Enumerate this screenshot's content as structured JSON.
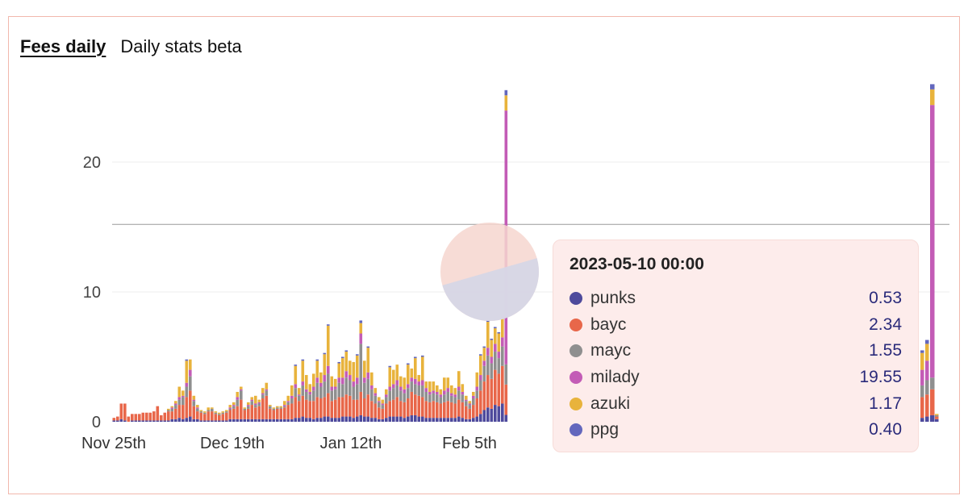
{
  "tabs": [
    {
      "label": "Fees daily",
      "active": true
    },
    {
      "label": "Daily stats beta",
      "active": false
    }
  ],
  "tooltip": {
    "title": "2023-05-10 00:00",
    "rows": [
      {
        "name": "punks",
        "value": "0.53",
        "color": "#4e4a9c"
      },
      {
        "name": "bayc",
        "value": "2.34",
        "color": "#e8674a"
      },
      {
        "name": "mayc",
        "value": "1.55",
        "color": "#8f8f8f"
      },
      {
        "name": "milady",
        "value": "19.55",
        "color": "#c35cb6"
      },
      {
        "name": "azuki",
        "value": "1.17",
        "color": "#e8b33c"
      },
      {
        "name": "ppg",
        "value": "0.40",
        "color": "#6367bd"
      }
    ]
  },
  "chart_data": {
    "type": "bar",
    "stacked": true,
    "y_ticks": [
      0,
      10,
      20
    ],
    "ylim": [
      0,
      26
    ],
    "x_tick_labels": [
      "Nov 25th",
      "Dec 19th",
      "Jan 12th",
      "Feb 5th"
    ],
    "hover_line_value": 15.2,
    "series": [
      {
        "name": "punks",
        "color": "#4e4a9c"
      },
      {
        "name": "bayc",
        "color": "#e8674a"
      },
      {
        "name": "mayc",
        "color": "#8f8f8f"
      },
      {
        "name": "milady",
        "color": "#c35cb6"
      },
      {
        "name": "azuki",
        "color": "#e8b33c"
      },
      {
        "name": "ppg",
        "color": "#6367bd"
      }
    ],
    "bars": [
      [
        0.1,
        0.2,
        0,
        0,
        0,
        0
      ],
      [
        0.1,
        0.3,
        0,
        0,
        0,
        0
      ],
      [
        0.2,
        1.2,
        0,
        0,
        0,
        0
      ],
      [
        0.1,
        1.3,
        0,
        0,
        0,
        0
      ],
      [
        0,
        0.4,
        0,
        0,
        0,
        0
      ],
      [
        0.1,
        0.5,
        0,
        0,
        0,
        0
      ],
      [
        0.1,
        0.5,
        0,
        0,
        0,
        0
      ],
      [
        0.1,
        0.5,
        0,
        0,
        0,
        0
      ],
      [
        0.1,
        0.6,
        0,
        0,
        0,
        0
      ],
      [
        0.1,
        0.6,
        0,
        0,
        0,
        0
      ],
      [
        0.1,
        0.6,
        0,
        0,
        0,
        0
      ],
      [
        0.1,
        0.7,
        0,
        0,
        0,
        0
      ],
      [
        0.1,
        1.1,
        0,
        0,
        0,
        0
      ],
      [
        0.1,
        0.4,
        0,
        0,
        0,
        0
      ],
      [
        0.1,
        0.6,
        0,
        0,
        0,
        0
      ],
      [
        0.1,
        0.7,
        0.1,
        0,
        0.1,
        0
      ],
      [
        0.2,
        0.6,
        0.2,
        0.1,
        0.1,
        0
      ],
      [
        0.2,
        0.8,
        0.3,
        0.1,
        0.2,
        0
      ],
      [
        0.3,
        1.0,
        0.4,
        0.2,
        0.8,
        0
      ],
      [
        0.2,
        1.1,
        0.6,
        0.1,
        0.4,
        0
      ],
      [
        0.3,
        1.6,
        0.8,
        0.3,
        1.7,
        0.1
      ],
      [
        0.4,
        2.0,
        1.1,
        0.5,
        0.8,
        0
      ],
      [
        0.2,
        1.0,
        0.4,
        0.1,
        0.3,
        0
      ],
      [
        0.2,
        0.6,
        0.2,
        0.1,
        0.2,
        0
      ],
      [
        0.1,
        0.6,
        0.1,
        0,
        0.1,
        0
      ],
      [
        0.1,
        0.5,
        0.1,
        0,
        0.1,
        0
      ],
      [
        0.1,
        0.7,
        0.1,
        0,
        0.2,
        0
      ],
      [
        0.1,
        0.7,
        0.2,
        0,
        0.1,
        0
      ],
      [
        0.1,
        0.5,
        0.1,
        0,
        0.1,
        0
      ],
      [
        0.1,
        0.4,
        0.1,
        0,
        0.1,
        0
      ],
      [
        0.1,
        0.5,
        0.1,
        0,
        0.1,
        0
      ],
      [
        0.1,
        0.6,
        0.1,
        0,
        0.1,
        0
      ],
      [
        0.2,
        0.7,
        0.1,
        0.1,
        0.2,
        0
      ],
      [
        0.2,
        0.8,
        0.2,
        0.1,
        0.2,
        0
      ],
      [
        0.2,
        1.0,
        0.5,
        0.2,
        0.4,
        0
      ],
      [
        0.2,
        1.5,
        0.7,
        0.1,
        0.2,
        0
      ],
      [
        0.2,
        0.7,
        0.1,
        0,
        0.1,
        0
      ],
      [
        0.2,
        0.8,
        0.2,
        0.1,
        0.2,
        0
      ],
      [
        0.2,
        1.1,
        0.3,
        0.1,
        0.2,
        0
      ],
      [
        0.2,
        0.9,
        0.2,
        0.1,
        0.6,
        0
      ],
      [
        0.2,
        1.0,
        0.2,
        0.1,
        0.2,
        0
      ],
      [
        0.2,
        1.6,
        0.3,
        0.1,
        0.4,
        0
      ],
      [
        0.2,
        1.8,
        0.4,
        0.1,
        0.5,
        0
      ],
      [
        0.2,
        0.8,
        0.2,
        0,
        0.1,
        0
      ],
      [
        0.2,
        0.7,
        0.1,
        0,
        0.1,
        0
      ],
      [
        0.2,
        0.8,
        0.1,
        0,
        0.1,
        0
      ],
      [
        0.2,
        0.8,
        0.1,
        0,
        0.1,
        0
      ],
      [
        0.2,
        0.9,
        0.1,
        0.1,
        0.3,
        0
      ],
      [
        0.2,
        1.1,
        0.2,
        0.1,
        0.4,
        0
      ],
      [
        0.2,
        1.2,
        0.4,
        0.2,
        0.8,
        0
      ],
      [
        0.3,
        1.6,
        0.7,
        0.3,
        1.4,
        0.1
      ],
      [
        0.3,
        1.3,
        0.4,
        0.1,
        0.5,
        0
      ],
      [
        0.4,
        1.6,
        0.8,
        0.3,
        1.6,
        0.1
      ],
      [
        0.3,
        1.4,
        0.6,
        0.2,
        1.1,
        0
      ],
      [
        0.3,
        1.3,
        0.5,
        0.2,
        0.6,
        0
      ],
      [
        0.2,
        1.4,
        0.8,
        0.3,
        1.0,
        0
      ],
      [
        0.3,
        1.6,
        1.1,
        0.4,
        1.3,
        0.1
      ],
      [
        0.3,
        1.5,
        0.9,
        0.3,
        0.8,
        0
      ],
      [
        0.4,
        1.5,
        1.2,
        0.5,
        1.6,
        0.1
      ],
      [
        0.4,
        1.8,
        1.5,
        0.6,
        3.1,
        0.1
      ],
      [
        0.3,
        1.3,
        0.8,
        0.3,
        0.8,
        0
      ],
      [
        0.3,
        1.4,
        0.8,
        0.2,
        0.6,
        0
      ],
      [
        0.3,
        1.6,
        1.1,
        0.4,
        1.1,
        0.1
      ],
      [
        0.4,
        1.5,
        1.0,
        0.5,
        1.5,
        0.1
      ],
      [
        0.4,
        1.7,
        1.3,
        0.5,
        1.5,
        0.1
      ],
      [
        0.4,
        1.6,
        1.2,
        0.4,
        1.1,
        0
      ],
      [
        0.3,
        1.4,
        1.0,
        0.4,
        1.5,
        0
      ],
      [
        0.4,
        1.3,
        1.2,
        0.5,
        1.7,
        0.1
      ],
      [
        0.5,
        1.8,
        3.7,
        0.8,
        0.8,
        0.2
      ],
      [
        0.4,
        1.4,
        1.2,
        0.4,
        1.3,
        0
      ],
      [
        0.4,
        1.7,
        1.2,
        0.5,
        1.9,
        0.1
      ],
      [
        0.3,
        1.3,
        0.9,
        0.3,
        1.0,
        0
      ],
      [
        0.3,
        1.1,
        0.6,
        0.2,
        0.4,
        0
      ],
      [
        0.2,
        0.9,
        0.4,
        0.1,
        0.3,
        0
      ],
      [
        0.2,
        0.8,
        0.3,
        0.1,
        0.3,
        0
      ],
      [
        0.3,
        1.1,
        0.5,
        0.2,
        0.4,
        0
      ],
      [
        0.4,
        1.2,
        0.8,
        0.3,
        1.5,
        0.1
      ],
      [
        0.4,
        1.3,
        0.9,
        0.3,
        1.1,
        0
      ],
      [
        0.4,
        1.5,
        0.9,
        0.4,
        1.2,
        0
      ],
      [
        0.4,
        1.2,
        0.8,
        0.3,
        0.8,
        0
      ],
      [
        0.3,
        1.2,
        0.7,
        0.3,
        0.9,
        0
      ],
      [
        0.4,
        1.4,
        0.8,
        0.3,
        1.5,
        0.1
      ],
      [
        0.5,
        1.8,
        0.8,
        0.3,
        0.7,
        0
      ],
      [
        0.5,
        1.6,
        0.8,
        0.4,
        1.6,
        0.1
      ],
      [
        0.4,
        1.6,
        0.8,
        0.3,
        0.5,
        0
      ],
      [
        0.4,
        1.5,
        0.9,
        0.4,
        1.8,
        0.1
      ],
      [
        0.3,
        1.3,
        0.7,
        0.3,
        0.5,
        0
      ],
      [
        0.3,
        1.2,
        0.6,
        0.2,
        0.8,
        0
      ],
      [
        0.3,
        1.3,
        0.6,
        0.2,
        0.7,
        0
      ],
      [
        0.3,
        1.2,
        0.6,
        0.2,
        0.5,
        0
      ],
      [
        0.3,
        1.1,
        0.5,
        0.2,
        0.4,
        0
      ],
      [
        0.3,
        1.2,
        0.6,
        0.3,
        1.0,
        0
      ],
      [
        0.3,
        1.3,
        0.7,
        0.3,
        0.8,
        0
      ],
      [
        0.3,
        1.2,
        0.5,
        0.2,
        0.6,
        0
      ],
      [
        0.3,
        1.1,
        0.5,
        0.2,
        0.5,
        0
      ],
      [
        0.4,
        1.3,
        0.7,
        0.3,
        1.2,
        0
      ],
      [
        0.3,
        1.2,
        0.6,
        0.2,
        0.6,
        0
      ],
      [
        0.2,
        1.0,
        0.4,
        0.1,
        0.3,
        0
      ],
      [
        0.2,
        0.8,
        0.3,
        0.1,
        0.2,
        0
      ],
      [
        0.3,
        1.0,
        0.5,
        0.2,
        0.3,
        0
      ],
      [
        0.4,
        1.4,
        0.6,
        0.3,
        1.1,
        0
      ],
      [
        0.6,
        1.8,
        0.8,
        0.4,
        1.5,
        0.1
      ],
      [
        0.9,
        2.2,
        1.2,
        0.4,
        1.0,
        0.1
      ],
      [
        1.1,
        2.5,
        1.5,
        0.6,
        2.0,
        0.1
      ],
      [
        1.0,
        2.3,
        1.2,
        0.5,
        1.3,
        0.1
      ],
      [
        1.3,
        2.7,
        1.4,
        0.6,
        1.2,
        0.1
      ],
      [
        1.2,
        2.5,
        1.2,
        0.5,
        1.4,
        0.1
      ],
      [
        1.4,
        2.9,
        1.5,
        0.7,
        1.5,
        0.1
      ],
      [
        0.53,
        2.34,
        1.55,
        19.55,
        1.17,
        0.4
      ]
    ],
    "end_bars": [
      [
        0.3,
        1.6,
        0.9,
        1.2,
        1.3,
        0.2
      ],
      [
        0.4,
        1.7,
        1.1,
        1.5,
        1.3,
        0.3
      ],
      [
        0.5,
        2.0,
        0.9,
        21.0,
        1.2,
        0.4
      ],
      [
        0.2,
        0.2,
        0.1,
        0,
        0.1,
        0
      ]
    ]
  }
}
